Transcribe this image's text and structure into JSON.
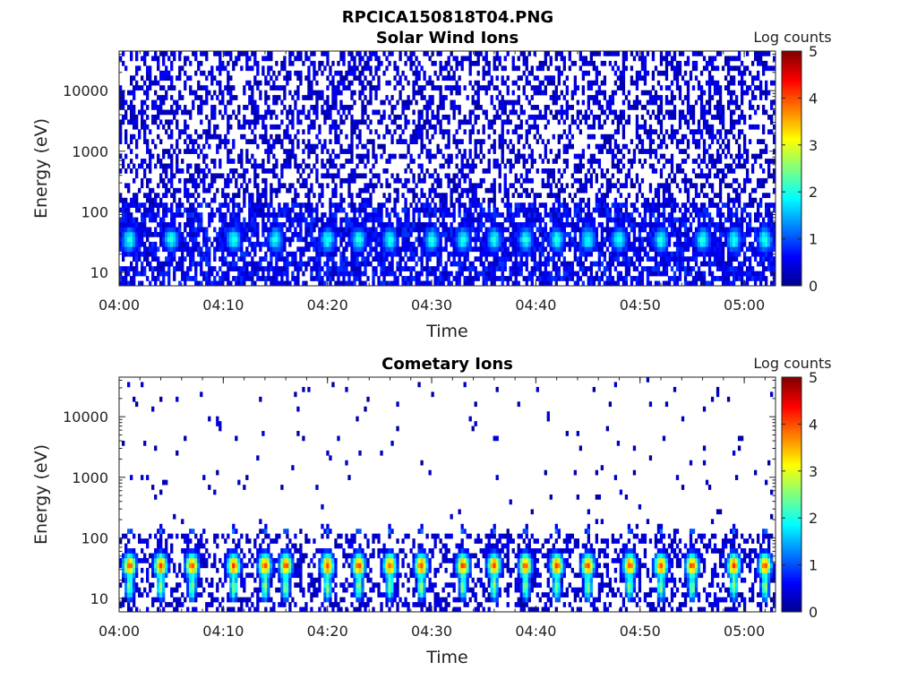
{
  "figure_title": "RPCICA150818T04.PNG",
  "colors": {
    "colormap": [
      "#00008f",
      "#0000ff",
      "#0080ff",
      "#00ffff",
      "#80ff80",
      "#ffff00",
      "#ff8000",
      "#ff0000",
      "#800000"
    ],
    "background": "#ffffff",
    "axes": "#222222"
  },
  "chart_data": [
    {
      "type": "heatmap",
      "title": "Solar Wind Ions",
      "xlabel": "Time",
      "ylabel": "Energy (eV)",
      "x_ticks": [
        "04:00",
        "04:10",
        "04:20",
        "04:30",
        "04:40",
        "04:50",
        "05:00"
      ],
      "y_ticks": [
        "10",
        "100",
        "1000",
        "10000"
      ],
      "y_scale": "log",
      "ylim": [
        6,
        45000
      ],
      "xlim": [
        "04:00",
        "05:03"
      ],
      "colorbar": {
        "label": "Log counts",
        "range": [
          0,
          5
        ],
        "ticks": [
          "0",
          "1",
          "2",
          "3",
          "4",
          "5"
        ]
      },
      "peak_times": [
        "04:01",
        "04:05",
        "04:11",
        "04:15",
        "04:20",
        "04:23",
        "04:26",
        "04:30",
        "04:33",
        "04:36",
        "04:39",
        "04:42",
        "04:45",
        "04:48",
        "04:52",
        "04:56",
        "04:59",
        "05:02"
      ],
      "peak_energy_eV": 35,
      "peak_log_counts": 1.9,
      "background_log_counts": 0.6
    },
    {
      "type": "heatmap",
      "title": "Cometary Ions",
      "xlabel": "Time",
      "ylabel": "Energy (eV)",
      "x_ticks": [
        "04:00",
        "04:10",
        "04:20",
        "04:30",
        "04:40",
        "04:50",
        "05:00"
      ],
      "y_ticks": [
        "10",
        "100",
        "1000",
        "10000"
      ],
      "y_scale": "log",
      "ylim": [
        6,
        45000
      ],
      "xlim": [
        "04:00",
        "05:03"
      ],
      "colorbar": {
        "label": "Log counts",
        "range": [
          0,
          5
        ],
        "ticks": [
          "0",
          "1",
          "2",
          "3",
          "4",
          "5"
        ]
      },
      "peak_times": [
        "04:01",
        "04:04",
        "04:07",
        "04:11",
        "04:14",
        "04:16",
        "04:20",
        "04:23",
        "04:26",
        "04:29",
        "04:33",
        "04:36",
        "04:39",
        "04:42",
        "04:45",
        "04:49",
        "04:52",
        "04:55",
        "04:59",
        "05:02"
      ],
      "peak_energy_eV": 35,
      "peak_log_counts": 3.9,
      "background_log_counts": 0.1
    }
  ]
}
